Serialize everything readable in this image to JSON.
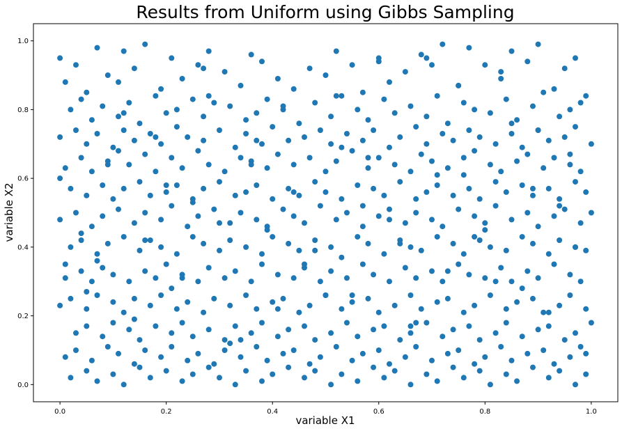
{
  "chart_data": {
    "type": "scatter",
    "title": "Results from Uniform using Gibbs Sampling",
    "xlabel": "variable X1",
    "ylabel": "variable X2",
    "xlim": [
      -0.05,
      1.05
    ],
    "ylim": [
      -0.05,
      1.05
    ],
    "xticks": [
      "0.0",
      "0.2",
      "0.4",
      "0.6",
      "0.8",
      "1.0"
    ],
    "yticks": [
      "0.0",
      "0.2",
      "0.4",
      "0.6",
      "0.8",
      "1.0"
    ],
    "grid": false,
    "color": "#1f77b4",
    "series": [
      {
        "x": [
          0.0,
          0.01,
          0.03,
          0.05,
          0.07,
          0.09,
          0.12,
          0.14,
          0.16,
          0.19,
          0.21,
          0.23,
          0.26,
          0.28,
          0.31,
          0.34,
          0.36,
          0.38,
          0.41,
          0.44,
          0.47,
          0.5,
          0.52,
          0.55,
          0.57,
          0.6,
          0.62,
          0.65,
          0.68,
          0.7,
          0.72,
          0.75,
          0.77,
          0.8,
          0.83,
          0.85,
          0.88,
          0.9,
          0.93,
          0.95,
          0.97,
          0.99,
          0.02,
          0.04,
          0.06,
          0.08,
          0.11,
          0.13,
          0.15,
          0.18,
          0.2,
          0.22,
          0.25,
          0.27,
          0.29,
          0.32,
          0.35,
          0.37,
          0.39,
          0.42,
          0.45,
          0.48,
          0.51,
          0.53,
          0.56,
          0.58,
          0.61,
          0.63,
          0.66,
          0.69,
          0.71,
          0.73,
          0.76,
          0.78,
          0.81,
          0.84,
          0.86,
          0.89,
          0.91,
          0.94,
          0.96,
          0.98,
          0.0,
          0.03,
          0.05,
          0.07,
          0.1,
          0.12,
          0.14,
          0.17,
          0.19,
          0.22,
          0.24,
          0.27,
          0.3,
          0.33,
          0.35,
          0.38,
          0.4,
          0.43,
          0.46,
          0.49,
          0.51,
          0.54,
          0.57,
          0.59,
          0.62,
          0.64,
          0.67,
          0.69,
          0.72,
          0.74,
          0.77,
          0.79,
          0.82,
          0.85,
          0.87,
          0.9,
          0.92,
          0.95,
          0.97,
          1.0,
          0.01,
          0.04,
          0.06,
          0.09,
          0.11,
          0.13,
          0.16,
          0.18,
          0.21,
          0.23,
          0.26,
          0.28,
          0.31,
          0.34,
          0.36,
          0.39,
          0.41,
          0.44,
          0.47,
          0.5,
          0.52,
          0.55,
          0.58,
          0.6,
          0.63,
          0.66,
          0.68,
          0.7,
          0.73,
          0.76,
          0.78,
          0.81,
          0.83,
          0.86,
          0.88,
          0.91,
          0.93,
          0.96,
          0.98,
          0.02,
          0.05,
          0.08,
          0.1,
          0.12,
          0.15,
          0.17,
          0.2,
          0.22,
          0.25,
          0.27,
          0.3,
          0.33,
          0.35,
          0.37,
          0.4,
          0.43,
          0.45,
          0.48,
          0.5,
          0.53,
          0.56,
          0.59,
          0.61,
          0.64,
          0.67,
          0.69,
          0.71,
          0.74,
          0.77,
          0.79,
          0.82,
          0.84,
          0.87,
          0.89,
          0.92,
          0.94,
          0.97,
          0.99,
          0.0,
          0.03,
          0.06,
          0.08,
          0.11,
          0.14,
          0.16,
          0.19,
          0.21,
          0.24,
          0.26,
          0.29,
          0.32,
          0.34,
          0.37,
          0.39,
          0.42,
          0.44,
          0.46,
          0.49,
          0.52,
          0.54,
          0.57,
          0.6,
          0.62,
          0.65,
          0.67,
          0.7,
          0.72,
          0.75,
          0.78,
          0.8,
          0.82,
          0.85,
          0.88,
          0.9,
          0.93,
          0.95,
          0.98,
          1.0,
          0.02,
          0.04,
          0.07,
          0.09,
          0.12,
          0.15,
          0.17,
          0.19,
          0.22,
          0.25,
          0.27,
          0.3,
          0.32,
          0.35,
          0.38,
          0.4,
          0.43,
          0.45,
          0.48,
          0.51,
          0.53,
          0.56,
          0.58,
          0.61,
          0.64,
          0.66,
          0.68,
          0.71,
          0.74,
          0.76,
          0.79,
          0.81,
          0.84,
          0.87,
          0.89,
          0.92,
          0.94,
          0.97,
          0.99,
          0.01,
          0.04,
          0.06,
          0.08,
          0.1,
          0.13,
          0.16,
          0.18,
          0.2,
          0.23,
          0.26,
          0.28,
          0.31,
          0.33,
          0.36,
          0.38,
          0.41,
          0.44,
          0.46,
          0.49,
          0.51,
          0.54,
          0.57,
          0.59,
          0.62,
          0.65,
          0.67,
          0.7,
          0.72,
          0.75,
          0.77,
          0.8,
          0.83,
          0.85,
          0.88,
          0.9,
          0.93,
          0.96,
          0.98,
          0.0,
          0.02,
          0.05,
          0.07,
          0.1,
          0.12,
          0.14,
          0.17,
          0.19,
          0.22,
          0.24,
          0.27,
          0.29,
          0.32,
          0.35,
          0.37,
          0.4,
          0.42,
          0.45,
          0.47,
          0.5,
          0.53,
          0.55,
          0.58,
          0.6,
          0.63,
          0.66,
          0.68,
          0.71,
          0.73,
          0.76,
          0.78,
          0.81,
          0.84,
          0.86,
          0.89,
          0.91,
          0.94,
          0.96,
          0.99,
          0.03,
          0.05,
          0.08,
          0.1,
          0.13,
          0.15,
          0.18,
          0.21,
          0.23,
          0.25,
          0.28,
          0.31,
          0.33,
          0.36,
          0.38,
          0.41,
          0.43,
          0.46,
          0.48,
          0.51,
          0.54,
          0.56,
          0.59,
          0.61,
          0.64,
          0.66,
          0.69,
          0.72,
          0.74,
          0.77,
          0.79,
          0.82,
          0.84,
          0.87,
          0.9,
          0.92,
          0.95,
          0.97,
          1.0,
          0.01,
          0.03,
          0.06,
          0.09,
          0.11,
          0.14,
          0.16,
          0.19,
          0.21,
          0.24,
          0.26,
          0.29,
          0.31,
          0.34,
          0.37,
          0.39,
          0.42,
          0.44,
          0.47,
          0.49,
          0.52,
          0.55,
          0.57,
          0.6,
          0.62,
          0.65,
          0.67,
          0.7,
          0.73,
          0.75,
          0.78,
          0.8,
          0.83,
          0.85,
          0.88,
          0.91,
          0.93,
          0.96,
          0.98,
          0.02,
          0.05,
          0.07,
          0.1,
          0.12,
          0.15,
          0.17,
          0.2,
          0.23,
          0.25,
          0.28,
          0.3,
          0.33,
          0.35,
          0.38,
          0.4,
          0.43,
          0.46,
          0.48,
          0.51,
          0.53,
          0.56,
          0.59,
          0.61,
          0.63,
          0.66,
          0.69,
          0.71,
          0.74,
          0.76,
          0.79,
          0.81,
          0.84,
          0.86,
          0.89,
          0.92,
          0.94,
          0.97,
          0.99,
          0.0,
          0.04,
          0.07,
          0.11,
          0.14,
          0.18,
          0.21,
          0.25,
          0.28,
          0.32,
          0.36,
          0.39,
          0.42,
          0.46,
          0.5,
          0.53,
          0.57,
          0.6,
          0.64,
          0.67,
          0.71,
          0.75,
          0.78,
          0.82,
          0.85,
          0.89,
          0.92,
          0.96,
          0.99,
          0.01,
          0.05,
          0.09,
          0.12,
          0.16,
          0.2,
          0.23,
          0.27,
          0.3,
          0.34,
          0.37,
          0.41,
          0.44,
          0.48,
          0.52,
          0.55,
          0.58,
          0.62,
          0.66,
          0.69,
          0.73,
          0.76,
          0.8,
          0.83,
          0.87,
          0.9,
          0.94,
          0.97
        ],
        "y": [
          0.95,
          0.88,
          0.93,
          0.85,
          0.98,
          0.9,
          0.97,
          0.92,
          0.99,
          0.86,
          0.95,
          0.89,
          0.93,
          0.84,
          0.91,
          0.87,
          0.96,
          0.94,
          0.89,
          0.86,
          0.92,
          0.9,
          0.97,
          0.93,
          0.85,
          0.95,
          0.88,
          0.91,
          0.96,
          0.93,
          0.99,
          0.87,
          0.98,
          0.93,
          0.91,
          0.97,
          0.94,
          0.99,
          0.86,
          0.92,
          0.95,
          0.84,
          0.8,
          0.83,
          0.77,
          0.81,
          0.78,
          0.82,
          0.76,
          0.84,
          0.79,
          0.8,
          0.83,
          0.78,
          0.82,
          0.81,
          0.77,
          0.79,
          0.83,
          0.8,
          0.76,
          0.82,
          0.78,
          0.84,
          0.8,
          0.77,
          0.83,
          0.79,
          0.81,
          0.78,
          0.84,
          0.76,
          0.82,
          0.8,
          0.79,
          0.83,
          0.77,
          0.81,
          0.85,
          0.78,
          0.8,
          0.82,
          0.72,
          0.74,
          0.7,
          0.73,
          0.69,
          0.74,
          0.71,
          0.73,
          0.7,
          0.75,
          0.72,
          0.71,
          0.74,
          0.69,
          0.73,
          0.7,
          0.75,
          0.71,
          0.72,
          0.74,
          0.7,
          0.73,
          0.71,
          0.74,
          0.69,
          0.72,
          0.75,
          0.7,
          0.73,
          0.71,
          0.74,
          0.72,
          0.7,
          0.73,
          0.69,
          0.74,
          0.71,
          0.72,
          0.75,
          0.7,
          0.63,
          0.66,
          0.62,
          0.65,
          0.68,
          0.64,
          0.67,
          0.62,
          0.66,
          0.63,
          0.68,
          0.64,
          0.62,
          0.66,
          0.65,
          0.63,
          0.67,
          0.64,
          0.66,
          0.62,
          0.65,
          0.68,
          0.63,
          0.66,
          0.64,
          0.62,
          0.67,
          0.65,
          0.63,
          0.66,
          0.68,
          0.64,
          0.62,
          0.65,
          0.67,
          0.63,
          0.66,
          0.64,
          0.62,
          0.57,
          0.55,
          0.58,
          0.54,
          0.57,
          0.59,
          0.55,
          0.56,
          0.58,
          0.54,
          0.57,
          0.59,
          0.55,
          0.56,
          0.58,
          0.54,
          0.57,
          0.55,
          0.59,
          0.56,
          0.54,
          0.58,
          0.57,
          0.55,
          0.59,
          0.54,
          0.56,
          0.58,
          0.55,
          0.57,
          0.54,
          0.59,
          0.56,
          0.58,
          0.55,
          0.57,
          0.54,
          0.59,
          0.56,
          0.48,
          0.5,
          0.46,
          0.49,
          0.51,
          0.47,
          0.5,
          0.48,
          0.52,
          0.46,
          0.49,
          0.51,
          0.47,
          0.5,
          0.48,
          0.46,
          0.51,
          0.49,
          0.47,
          0.52,
          0.48,
          0.5,
          0.46,
          0.49,
          0.51,
          0.47,
          0.5,
          0.48,
          0.46,
          0.51,
          0.49,
          0.47,
          0.52,
          0.48,
          0.5,
          0.46,
          0.49,
          0.51,
          0.47,
          0.5,
          0.4,
          0.42,
          0.38,
          0.41,
          0.43,
          0.39,
          0.42,
          0.4,
          0.38,
          0.43,
          0.41,
          0.39,
          0.42,
          0.4,
          0.38,
          0.43,
          0.41,
          0.39,
          0.42,
          0.4,
          0.37,
          0.43,
          0.41,
          0.38,
          0.42,
          0.4,
          0.39,
          0.43,
          0.41,
          0.38,
          0.42,
          0.4,
          0.39,
          0.43,
          0.41,
          0.38,
          0.42,
          0.4,
          0.39,
          0.31,
          0.33,
          0.3,
          0.34,
          0.32,
          0.3,
          0.33,
          0.31,
          0.35,
          0.32,
          0.3,
          0.34,
          0.31,
          0.33,
          0.3,
          0.35,
          0.32,
          0.31,
          0.34,
          0.3,
          0.33,
          0.31,
          0.35,
          0.32,
          0.3,
          0.34,
          0.31,
          0.33,
          0.3,
          0.35,
          0.32,
          0.31,
          0.34,
          0.3,
          0.33,
          0.31,
          0.35,
          0.32,
          0.3,
          0.23,
          0.25,
          0.22,
          0.26,
          0.24,
          0.21,
          0.25,
          0.23,
          0.26,
          0.22,
          0.24,
          0.21,
          0.25,
          0.23,
          0.26,
          0.22,
          0.24,
          0.25,
          0.21,
          0.23,
          0.26,
          0.22,
          0.24,
          0.25,
          0.21,
          0.23,
          0.26,
          0.22,
          0.24,
          0.25,
          0.21,
          0.23,
          0.26,
          0.22,
          0.24,
          0.25,
          0.21,
          0.23,
          0.26,
          0.22,
          0.15,
          0.17,
          0.14,
          0.18,
          0.16,
          0.13,
          0.17,
          0.15,
          0.18,
          0.14,
          0.16,
          0.13,
          0.17,
          0.15,
          0.18,
          0.14,
          0.16,
          0.17,
          0.13,
          0.15,
          0.18,
          0.14,
          0.16,
          0.17,
          0.13,
          0.15,
          0.18,
          0.14,
          0.16,
          0.17,
          0.13,
          0.15,
          0.18,
          0.14,
          0.16,
          0.17,
          0.13,
          0.15,
          0.18,
          0.08,
          0.1,
          0.07,
          0.11,
          0.09,
          0.06,
          0.1,
          0.08,
          0.11,
          0.07,
          0.09,
          0.06,
          0.1,
          0.08,
          0.11,
          0.07,
          0.09,
          0.1,
          0.06,
          0.08,
          0.11,
          0.07,
          0.09,
          0.1,
          0.06,
          0.08,
          0.11,
          0.07,
          0.09,
          0.1,
          0.06,
          0.08,
          0.11,
          0.07,
          0.09,
          0.1,
          0.06,
          0.08,
          0.11,
          0.02,
          0.04,
          0.01,
          0.03,
          0.0,
          0.05,
          0.02,
          0.04,
          0.01,
          0.03,
          0.05,
          0.02,
          0.0,
          0.04,
          0.01,
          0.03,
          0.05,
          0.02,
          0.04,
          0.0,
          0.03,
          0.01,
          0.05,
          0.02,
          0.04,
          0.0,
          0.03,
          0.01,
          0.05,
          0.02,
          0.04,
          0.0,
          0.03,
          0.01,
          0.05,
          0.02,
          0.04,
          0.0,
          0.03,
          0.6,
          0.44,
          0.36,
          0.88,
          0.19,
          0.72,
          0.28,
          0.53,
          0.97,
          0.12,
          0.64,
          0.45,
          0.81,
          0.35,
          0.26,
          0.69,
          0.52,
          0.94,
          0.41,
          0.18,
          0.61,
          0.87,
          0.43,
          0.3,
          0.76,
          0.57,
          0.21,
          0.67,
          0.09,
          0.35,
          0.27,
          0.64,
          0.79,
          0.42,
          0.58,
          0.31,
          0.92,
          0.47,
          0.13,
          0.71,
          0.22,
          0.56,
          0.39,
          0.84,
          0.26,
          0.66,
          0.48,
          0.17,
          0.95,
          0.33,
          0.61,
          0.45,
          0.89,
          0.28,
          0.74,
          0.52,
          0.4
        ]
      }
    ]
  }
}
